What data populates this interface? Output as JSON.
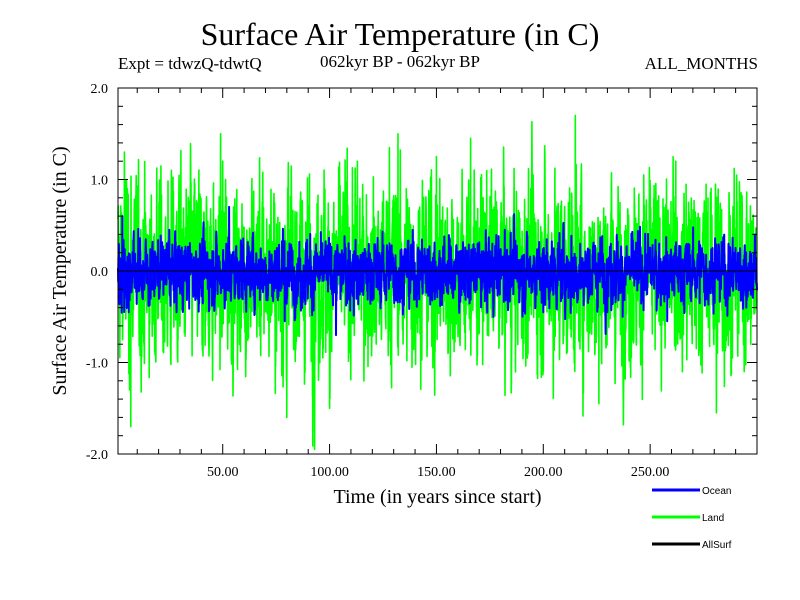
{
  "chart_data": {
    "type": "line",
    "title": "Surface Air Temperature (in C)",
    "subtitle_left": "Expt = tdwzQ-tdwtQ",
    "subtitle_center": "062kyr BP - 062kyr BP",
    "subtitle_right": "ALL_MONTHS",
    "xlabel": "Time (in years since start)",
    "ylabel": "Surface Air Temperature (in C)",
    "xlim": [
      1,
      300
    ],
    "ylim": [
      -2.0,
      2.0
    ],
    "x_ticks": [
      50,
      100,
      150,
      200,
      250
    ],
    "x_tick_labels": [
      "50.00",
      "100.00",
      "150.00",
      "200.00",
      "250.00"
    ],
    "y_ticks": [
      -2.0,
      -1.0,
      0.0,
      1.0,
      2.0
    ],
    "y_tick_labels": [
      "-2.0",
      "-1.0",
      "0.0",
      "1.0",
      "2.0"
    ],
    "zero_line": true,
    "legend_position": "bottom-right",
    "series": [
      {
        "name": "Land",
        "color": "#00ff00",
        "points_per_year": 12,
        "amplitude_sd": 0.5,
        "peaks": [
          [
            4,
            1.3
          ],
          [
            5,
            1.0
          ],
          [
            7,
            -1.7
          ],
          [
            26,
            1.1
          ],
          [
            50,
            1.2
          ],
          [
            80,
            -1.6
          ],
          [
            93,
            -1.95
          ],
          [
            100,
            -1.5
          ],
          [
            113,
            1.2
          ],
          [
            128,
            1.35
          ],
          [
            132,
            1.5
          ],
          [
            150,
            1.25
          ],
          [
            166,
            1.45
          ],
          [
            215,
            1.7
          ],
          [
            226,
            -1.45
          ],
          [
            247,
            1.05
          ],
          [
            262,
            1.2
          ],
          [
            281,
            -1.55
          ],
          [
            294,
            -1.1
          ]
        ]
      },
      {
        "name": "Ocean",
        "color": "#0000ff",
        "points_per_year": 12,
        "amplitude_sd": 0.18,
        "peaks": [
          [
            3,
            0.6
          ],
          [
            6,
            -0.45
          ],
          [
            25,
            0.45
          ],
          [
            53,
            0.7
          ],
          [
            79,
            -0.55
          ],
          [
            103,
            -0.7
          ],
          [
            182,
            0.45
          ],
          [
            200,
            -0.45
          ],
          [
            258,
            -0.55
          ],
          [
            295,
            -0.4
          ]
        ]
      },
      {
        "name": "AllSurf",
        "color": "#000000",
        "points_per_year": 0,
        "amplitude_sd": 0,
        "peaks": []
      }
    ]
  }
}
